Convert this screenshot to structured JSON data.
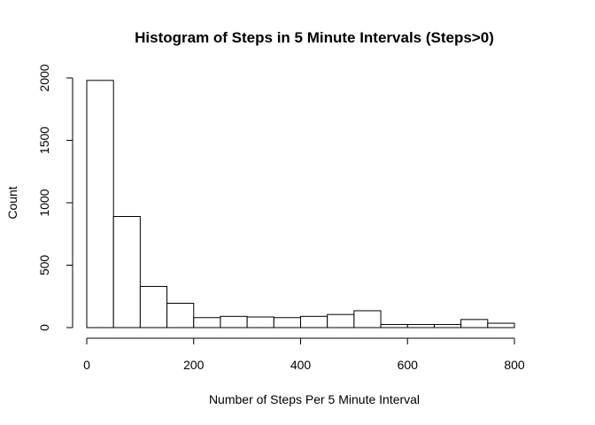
{
  "chart_data": {
    "type": "bar",
    "title": "Histogram of Steps in 5 Minute Intervals (Steps>0)",
    "xlabel": "Number of Steps Per 5 Minute Interval",
    "ylabel": "Count",
    "bin_width": 50,
    "bins": [
      {
        "start": 0,
        "end": 50,
        "value": 1980
      },
      {
        "start": 50,
        "end": 100,
        "value": 890
      },
      {
        "start": 100,
        "end": 150,
        "value": 330
      },
      {
        "start": 150,
        "end": 200,
        "value": 195
      },
      {
        "start": 200,
        "end": 250,
        "value": 80
      },
      {
        "start": 250,
        "end": 300,
        "value": 90
      },
      {
        "start": 300,
        "end": 350,
        "value": 85
      },
      {
        "start": 350,
        "end": 400,
        "value": 80
      },
      {
        "start": 400,
        "end": 450,
        "value": 90
      },
      {
        "start": 450,
        "end": 500,
        "value": 105
      },
      {
        "start": 500,
        "end": 550,
        "value": 135
      },
      {
        "start": 550,
        "end": 600,
        "value": 25
      },
      {
        "start": 600,
        "end": 650,
        "value": 25
      },
      {
        "start": 650,
        "end": 700,
        "value": 25
      },
      {
        "start": 700,
        "end": 750,
        "value": 65
      },
      {
        "start": 750,
        "end": 800,
        "value": 35
      }
    ],
    "xlim": [
      0,
      850
    ],
    "ylim": [
      0,
      2000
    ],
    "x_ticks": [
      0,
      200,
      400,
      600,
      800
    ],
    "y_ticks": [
      0,
      500,
      1000,
      1500,
      2000
    ],
    "grid": false,
    "colors": {
      "bar_fill": "#ffffff",
      "bar_stroke": "#000000"
    }
  }
}
